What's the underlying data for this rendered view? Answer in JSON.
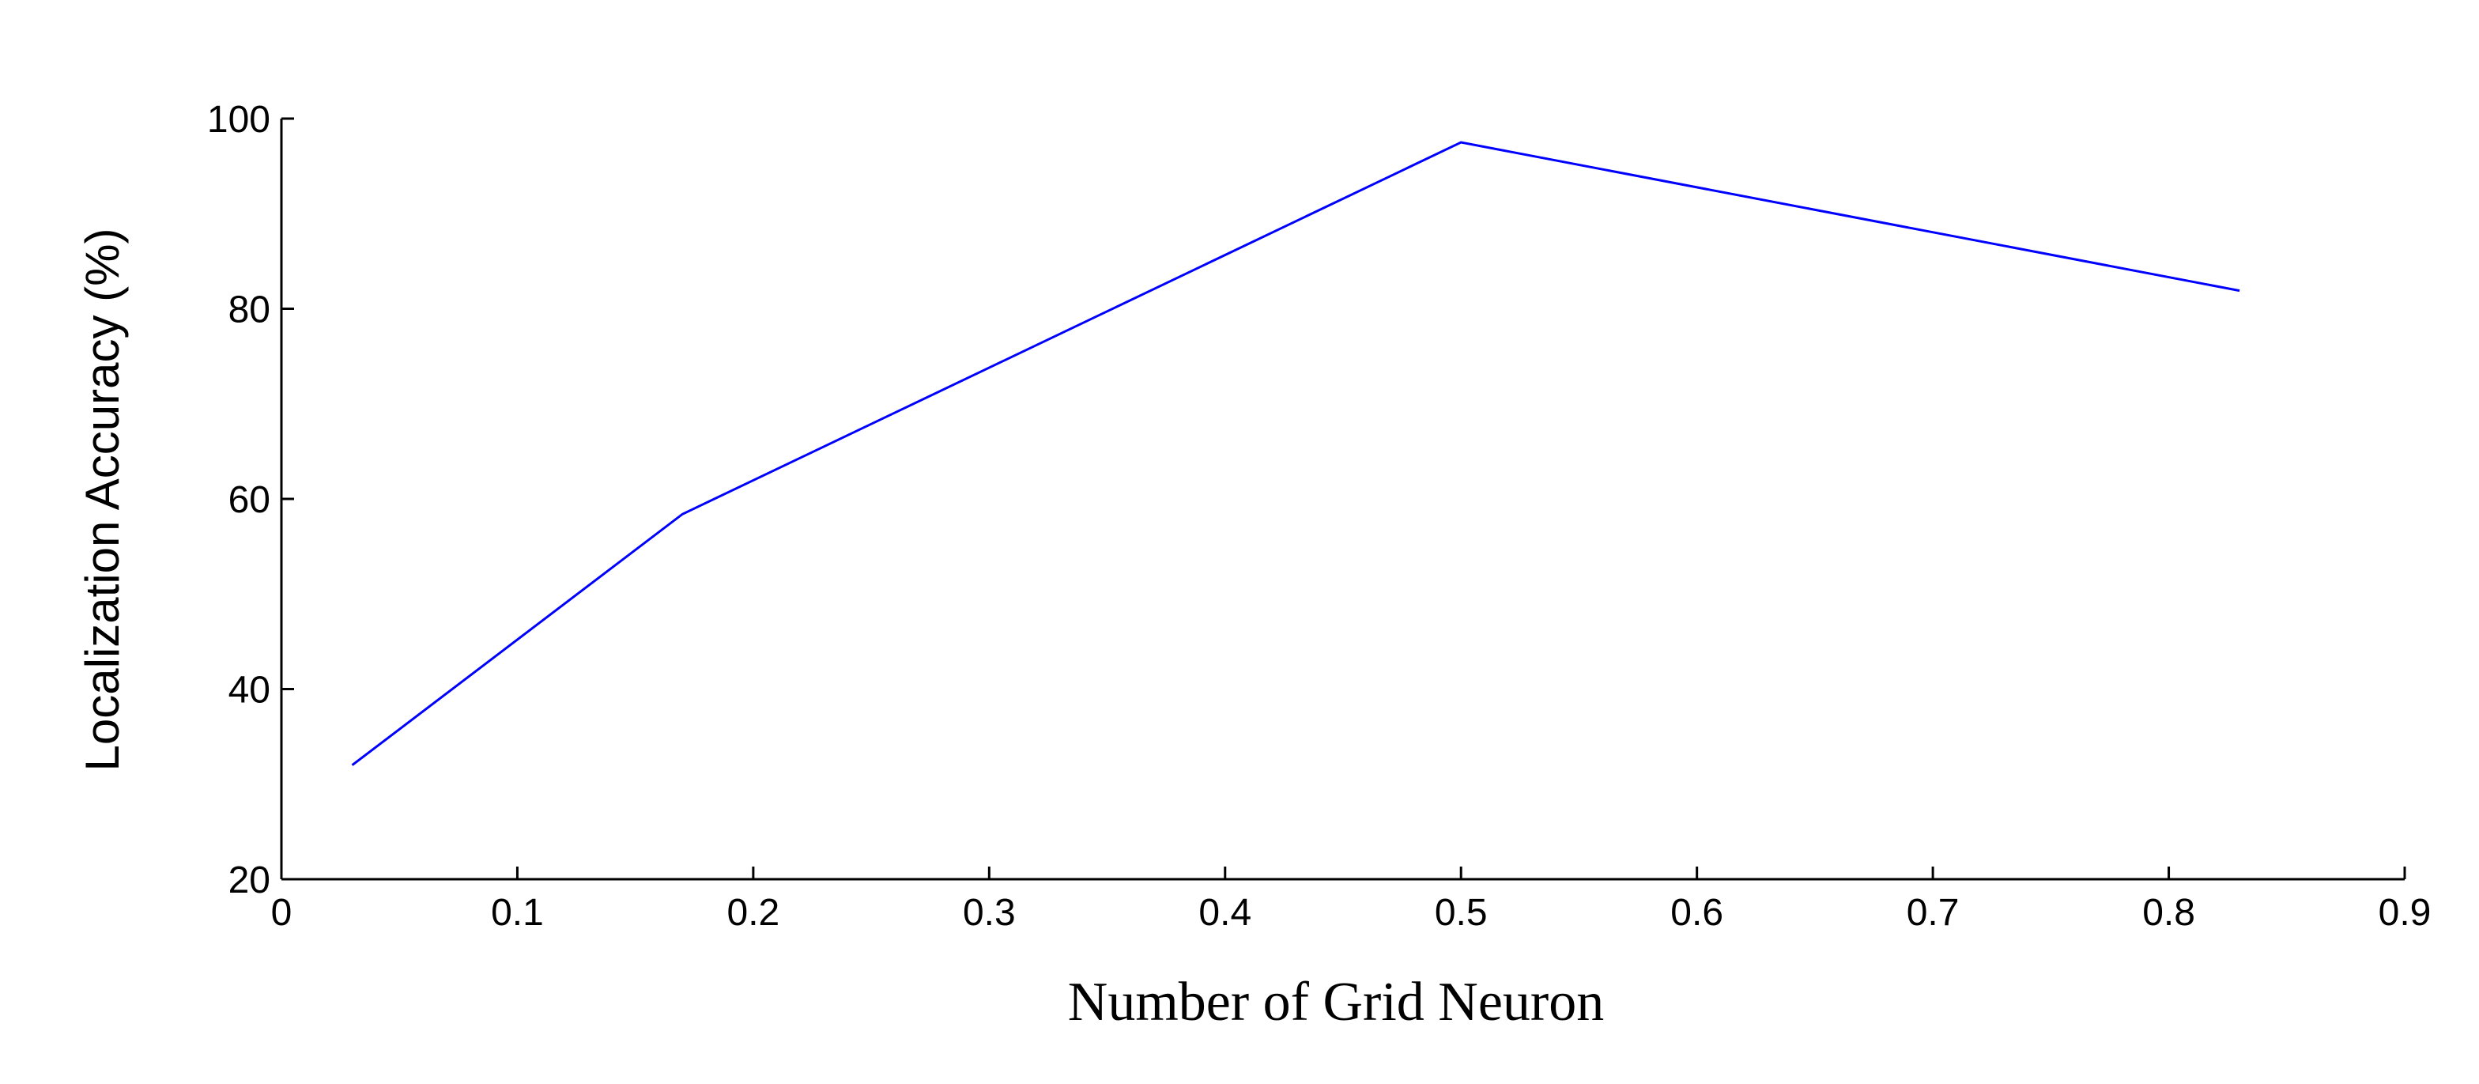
{
  "chart_data": {
    "type": "line",
    "x_label": "Number of Grid Neuron",
    "y_label": "Localization Accuracy (%)",
    "x": [
      0.03,
      0.17,
      0.5,
      0.83
    ],
    "series": [
      {
        "color": "#0000ff",
        "values": [
          32,
          58.4,
          97.5,
          81.9
        ]
      }
    ],
    "xlim": [
      0,
      0.9
    ],
    "xticks": [
      0,
      0.1,
      0.2,
      0.3,
      0.4,
      0.5,
      0.6,
      0.7,
      0.8,
      0.9
    ],
    "ylim": [
      20,
      100
    ],
    "yticks": [
      20,
      40,
      60,
      80,
      100
    ]
  }
}
